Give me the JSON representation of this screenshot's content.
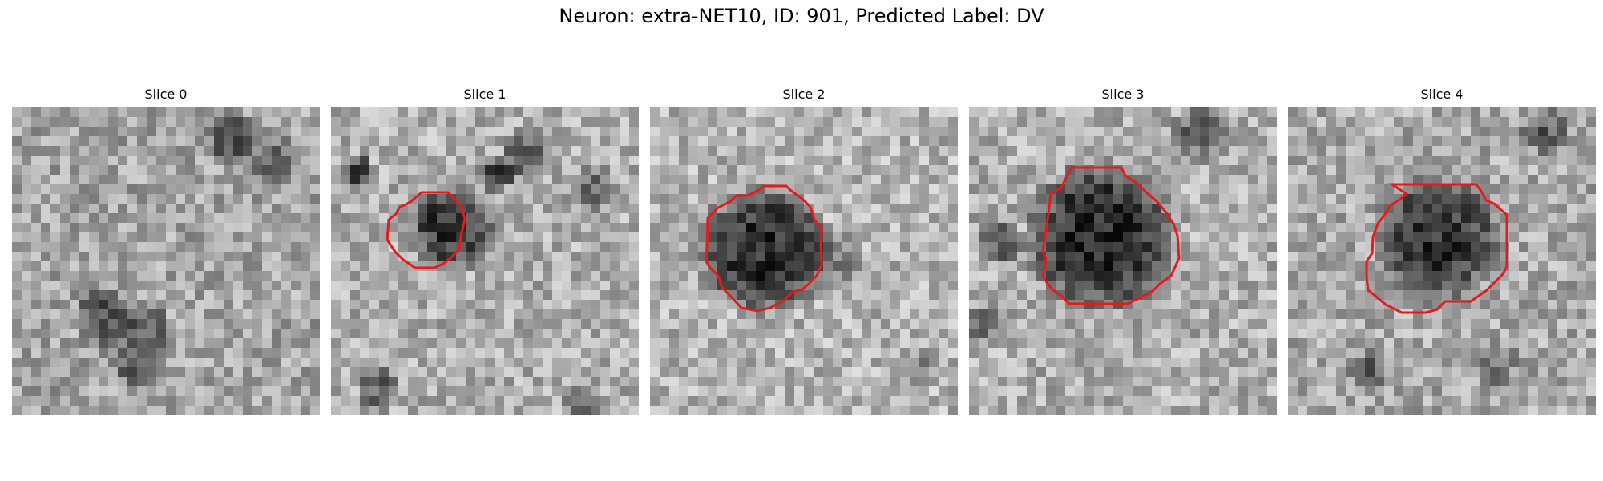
{
  "figure": {
    "title": "Neuron: extra-NET10, ID: 901, Predicted Label: DV",
    "contour_color": "#e41a1c"
  },
  "panels": [
    {
      "title": "Slice 0",
      "has_contour": false
    },
    {
      "title": "Slice 1",
      "has_contour": true
    },
    {
      "title": "Slice 2",
      "has_contour": true
    },
    {
      "title": "Slice 3",
      "has_contour": true
    },
    {
      "title": "Slice 4",
      "has_contour": true
    }
  ]
}
